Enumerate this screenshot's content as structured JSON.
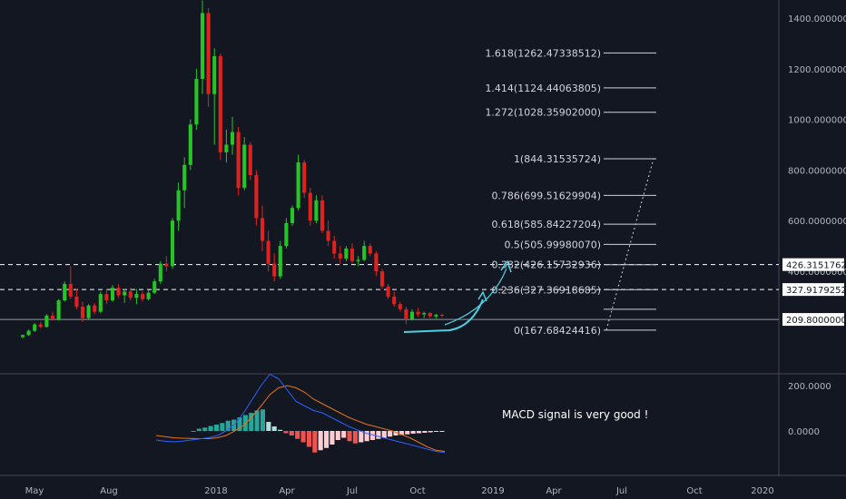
{
  "colors": {
    "background": "#131722",
    "up": "#26c526",
    "down": "#e0221f",
    "macd_line": "#2962ff",
    "signal_line": "#e8741c",
    "hist_up": "#26a69a",
    "hist_up_light": "#b2dfdb",
    "hist_down": "#ef5350",
    "hist_down_light": "#ffcdd2",
    "arrow": "#4dd0e1",
    "fib_line": "#cfd2d8",
    "dashed": "#ffffff"
  },
  "annotation": "MACD signal is very good !",
  "chart_data": {
    "type": "candlestick",
    "price_axis": {
      "ticks": [
        "1400.00000000",
        "1200.00000000",
        "1000.00000000",
        "800.00000000",
        "600.00000000",
        "400.00000000"
      ],
      "tick_values": [
        1400,
        1200,
        1000,
        800,
        600,
        400
      ],
      "range": [
        130,
        1470
      ]
    },
    "price_tags": [
      {
        "text": "426.31517626",
        "value": 426.31517626
      },
      {
        "text": "327.91792529",
        "value": 327.91792529
      },
      {
        "text": "209.80000000",
        "value": 209.8
      }
    ],
    "horizontal_lines": [
      {
        "value": 426.31517626,
        "style": "dashed"
      },
      {
        "value": 327.91792529,
        "style": "dashed"
      },
      {
        "value": 209.8,
        "style": "solid"
      }
    ],
    "fib_levels": [
      {
        "label": "1.618(1262.47338512)",
        "value": 1262.47338512
      },
      {
        "label": "1.414(1124.44063805)",
        "value": 1124.44063805
      },
      {
        "label": "1.272(1028.35902000)",
        "value": 1028.35902
      },
      {
        "label": "1(844.31535724)",
        "value": 844.31535724
      },
      {
        "label": "0.786(699.51629904)",
        "value": 699.51629904
      },
      {
        "label": "0.618(585.84227204)",
        "value": 585.84227204
      },
      {
        "label": "0.5(505.99980070)",
        "value": 505.9998007
      },
      {
        "label": "0.382(426.15732936)",
        "value": 426.15732936
      },
      {
        "label": "0.236(327.36918685)",
        "value": 327.36918685
      },
      {
        "label": "",
        "value": 250
      },
      {
        "label": "0(167.68424416)",
        "value": 167.68424416
      }
    ],
    "time_axis": [
      "May",
      "Aug",
      "2018",
      "Apr",
      "Jul",
      "Oct",
      "2019",
      "Apr",
      "Jul",
      "Oct",
      "2020"
    ],
    "candles_weekly": [
      [
        140,
        150,
        135,
        148
      ],
      [
        148,
        170,
        145,
        165
      ],
      [
        165,
        195,
        160,
        190
      ],
      [
        190,
        200,
        175,
        180
      ],
      [
        180,
        230,
        178,
        225
      ],
      [
        225,
        240,
        205,
        210
      ],
      [
        210,
        290,
        205,
        285
      ],
      [
        285,
        360,
        280,
        350
      ],
      [
        350,
        420,
        290,
        300
      ],
      [
        300,
        330,
        250,
        260
      ],
      [
        260,
        280,
        200,
        215
      ],
      [
        215,
        270,
        210,
        265
      ],
      [
        265,
        275,
        230,
        240
      ],
      [
        240,
        320,
        235,
        310
      ],
      [
        310,
        330,
        270,
        285
      ],
      [
        285,
        345,
        280,
        335
      ],
      [
        335,
        350,
        295,
        305
      ],
      [
        305,
        330,
        275,
        320
      ],
      [
        320,
        335,
        285,
        295
      ],
      [
        295,
        330,
        270,
        310
      ],
      [
        310,
        320,
        280,
        290
      ],
      [
        290,
        325,
        285,
        315
      ],
      [
        315,
        370,
        310,
        360
      ],
      [
        360,
        440,
        350,
        430
      ],
      [
        430,
        460,
        400,
        420
      ],
      [
        420,
        610,
        410,
        600
      ],
      [
        600,
        750,
        560,
        720
      ],
      [
        720,
        850,
        650,
        820
      ],
      [
        820,
        1000,
        800,
        980
      ],
      [
        980,
        1200,
        960,
        1160
      ],
      [
        1160,
        1470,
        1100,
        1420
      ],
      [
        1420,
        1440,
        1050,
        1100
      ],
      [
        1100,
        1280,
        900,
        1250
      ],
      [
        1250,
        1260,
        840,
        870
      ],
      [
        870,
        960,
        830,
        900
      ],
      [
        900,
        1010,
        860,
        950
      ],
      [
        950,
        970,
        700,
        730
      ],
      [
        730,
        930,
        720,
        900
      ],
      [
        900,
        910,
        760,
        780
      ],
      [
        780,
        800,
        580,
        610
      ],
      [
        610,
        660,
        480,
        520
      ],
      [
        520,
        560,
        400,
        430
      ],
      [
        430,
        470,
        360,
        380
      ],
      [
        380,
        520,
        370,
        500
      ],
      [
        500,
        610,
        490,
        590
      ],
      [
        590,
        660,
        580,
        650
      ],
      [
        650,
        860,
        640,
        830
      ],
      [
        830,
        840,
        690,
        710
      ],
      [
        710,
        730,
        580,
        600
      ],
      [
        600,
        700,
        590,
        680
      ],
      [
        680,
        700,
        550,
        560
      ],
      [
        560,
        600,
        500,
        520
      ],
      [
        520,
        540,
        450,
        470
      ],
      [
        470,
        500,
        430,
        450
      ],
      [
        450,
        500,
        440,
        490
      ],
      [
        490,
        510,
        430,
        440
      ],
      [
        440,
        460,
        420,
        445
      ],
      [
        445,
        520,
        440,
        500
      ],
      [
        500,
        510,
        460,
        470
      ],
      [
        470,
        480,
        380,
        400
      ],
      [
        400,
        410,
        330,
        340
      ],
      [
        340,
        350,
        290,
        300
      ],
      [
        300,
        320,
        260,
        270
      ],
      [
        270,
        280,
        240,
        250
      ],
      [
        250,
        260,
        190,
        210
      ],
      [
        210,
        250,
        205,
        240
      ],
      [
        240,
        255,
        220,
        230
      ],
      [
        230,
        240,
        215,
        235
      ],
      [
        235,
        238,
        215,
        222
      ],
      [
        222,
        232,
        214,
        228
      ],
      [
        228,
        232,
        218,
        225
      ]
    ],
    "macd_axis": {
      "ticks": [
        "200.0000",
        "0.0000"
      ],
      "tick_values": [
        200,
        0
      ],
      "range": [
        -110,
        260
      ]
    },
    "macd_line": [
      -40,
      -45,
      -48,
      -45,
      -40,
      -35,
      -30,
      -20,
      0,
      30,
      80,
      140,
      200,
      250,
      230,
      180,
      130,
      110,
      90,
      80,
      60,
      40,
      20,
      5,
      -10,
      -20,
      -30,
      -40,
      -50,
      -60,
      -70,
      -80,
      -90,
      -95
    ],
    "signal_line": [
      -20,
      -25,
      -30,
      -32,
      -33,
      -34,
      -34,
      -30,
      -20,
      0,
      25,
      65,
      110,
      160,
      190,
      200,
      190,
      170,
      140,
      120,
      100,
      80,
      60,
      45,
      30,
      20,
      10,
      0,
      -15,
      -30,
      -50,
      -70,
      -85,
      -90
    ],
    "histogram": [
      0,
      10,
      15,
      22,
      28,
      35,
      45,
      50,
      60,
      70,
      80,
      90,
      95,
      40,
      20,
      5,
      -10,
      -20,
      -35,
      -50,
      -70,
      -95,
      -85,
      -75,
      -60,
      -40,
      -30,
      -45,
      -55,
      -50,
      -45,
      -40,
      -35,
      -30,
      -25,
      -20,
      -18,
      -15,
      -12,
      -10,
      -8,
      -6,
      -4,
      -3
    ]
  }
}
